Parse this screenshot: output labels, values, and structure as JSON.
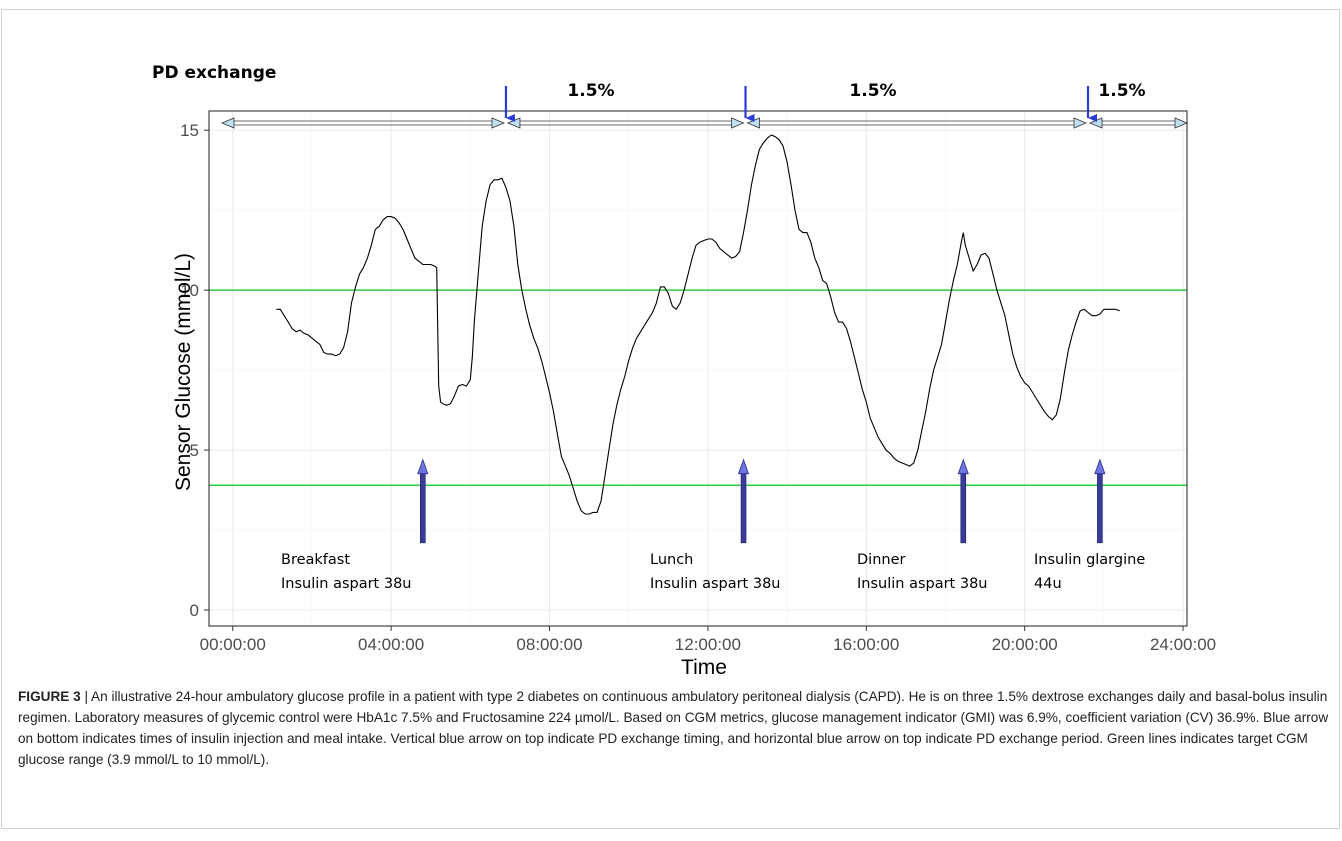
{
  "figure": {
    "top_header": "PD exchange",
    "caption_label": "FIGURE 3",
    "caption_sep": " | ",
    "caption_text": "An illustrative 24-hour ambulatory glucose profile in a patient with type 2 diabetes on continuous ambulatory peritoneal dialysis (CAPD). He is on three 1.5% dextrose exchanges daily and basal-bolus insulin regimen. Laboratory measures of glycemic control were HbA1c 7.5% and Fructosamine 224 µmol/L. Based on CGM metrics, glucose management indicator (GMI) was 6.9%, coefficient variation (CV) 36.9%. Blue arrow on bottom indicates times of insulin injection and meal intake. Vertical blue arrow on top indicate PD exchange timing, and horizontal blue arrow on top indicate PD exchange period. Green lines indicates target CGM glucose range (3.9 mmol/L to 10 mmol/L)."
  },
  "chart_data": {
    "type": "line",
    "xlabel": "Time",
    "ylabel": "Sensor Glucose (mmol/L)",
    "x_unit": "hours",
    "xlim": [
      -0.6,
      24.1
    ],
    "ylim": [
      -0.5,
      15.6
    ],
    "x_ticks": [
      {
        "value": 0,
        "label": "00:00:00"
      },
      {
        "value": 4,
        "label": "04:00:00"
      },
      {
        "value": 8,
        "label": "08:00:00"
      },
      {
        "value": 12,
        "label": "12:00:00"
      },
      {
        "value": 16,
        "label": "16:00:00"
      },
      {
        "value": 20,
        "label": "20:00:00"
      },
      {
        "value": 24,
        "label": "24:00:00"
      }
    ],
    "y_ticks": [
      0,
      5,
      10,
      15
    ],
    "grid": true,
    "reference_lines": [
      {
        "y": 10,
        "color": "#2ecc40"
      },
      {
        "y": 3.9,
        "color": "#2ecc40"
      }
    ],
    "series": [
      {
        "color": "#000000",
        "points": [
          [
            1.1,
            9.4
          ],
          [
            1.2,
            9.4
          ],
          [
            1.3,
            9.2
          ],
          [
            1.4,
            9.0
          ],
          [
            1.5,
            8.8
          ],
          [
            1.6,
            8.7
          ],
          [
            1.7,
            8.75
          ],
          [
            1.8,
            8.65
          ],
          [
            1.9,
            8.6
          ],
          [
            2.0,
            8.5
          ],
          [
            2.1,
            8.4
          ],
          [
            2.2,
            8.3
          ],
          [
            2.3,
            8.05
          ],
          [
            2.4,
            8.0
          ],
          [
            2.5,
            8.0
          ],
          [
            2.6,
            7.95
          ],
          [
            2.7,
            8.0
          ],
          [
            2.8,
            8.2
          ],
          [
            2.9,
            8.7
          ],
          [
            3.0,
            9.6
          ],
          [
            3.1,
            10.1
          ],
          [
            3.2,
            10.5
          ],
          [
            3.3,
            10.7
          ],
          [
            3.4,
            11.0
          ],
          [
            3.5,
            11.4
          ],
          [
            3.6,
            11.9
          ],
          [
            3.7,
            12.0
          ],
          [
            3.8,
            12.2
          ],
          [
            3.9,
            12.3
          ],
          [
            4.0,
            12.3
          ],
          [
            4.1,
            12.25
          ],
          [
            4.2,
            12.1
          ],
          [
            4.3,
            11.9
          ],
          [
            4.4,
            11.6
          ],
          [
            4.5,
            11.3
          ],
          [
            4.6,
            11.0
          ],
          [
            4.7,
            10.9
          ],
          [
            4.8,
            10.8
          ],
          [
            4.9,
            10.8
          ],
          [
            5.0,
            10.8
          ],
          [
            5.1,
            10.75
          ],
          [
            5.15,
            10.7
          ],
          [
            5.2,
            7.0
          ],
          [
            5.25,
            6.5
          ],
          [
            5.3,
            6.45
          ],
          [
            5.4,
            6.4
          ],
          [
            5.5,
            6.45
          ],
          [
            5.6,
            6.7
          ],
          [
            5.7,
            7.0
          ],
          [
            5.8,
            7.05
          ],
          [
            5.9,
            7.0
          ],
          [
            6.0,
            7.2
          ],
          [
            6.05,
            7.9
          ],
          [
            6.1,
            9.0
          ],
          [
            6.2,
            10.5
          ],
          [
            6.3,
            12.0
          ],
          [
            6.4,
            12.8
          ],
          [
            6.5,
            13.3
          ],
          [
            6.6,
            13.45
          ],
          [
            6.7,
            13.45
          ],
          [
            6.8,
            13.5
          ],
          [
            6.9,
            13.2
          ],
          [
            7.0,
            12.8
          ],
          [
            7.1,
            12.0
          ],
          [
            7.2,
            10.8
          ],
          [
            7.3,
            10.0
          ],
          [
            7.4,
            9.4
          ],
          [
            7.5,
            8.9
          ],
          [
            7.6,
            8.5
          ],
          [
            7.7,
            8.2
          ],
          [
            7.8,
            7.8
          ],
          [
            7.9,
            7.3
          ],
          [
            8.0,
            6.8
          ],
          [
            8.1,
            6.2
          ],
          [
            8.2,
            5.5
          ],
          [
            8.3,
            4.8
          ],
          [
            8.4,
            4.5
          ],
          [
            8.5,
            4.2
          ],
          [
            8.6,
            3.8
          ],
          [
            8.7,
            3.4
          ],
          [
            8.8,
            3.1
          ],
          [
            8.9,
            3.0
          ],
          [
            9.0,
            3.0
          ],
          [
            9.1,
            3.05
          ],
          [
            9.2,
            3.05
          ],
          [
            9.3,
            3.4
          ],
          [
            9.4,
            4.2
          ],
          [
            9.5,
            5.0
          ],
          [
            9.6,
            5.8
          ],
          [
            9.7,
            6.4
          ],
          [
            9.8,
            6.9
          ],
          [
            9.9,
            7.3
          ],
          [
            10.0,
            7.8
          ],
          [
            10.1,
            8.2
          ],
          [
            10.2,
            8.5
          ],
          [
            10.3,
            8.7
          ],
          [
            10.4,
            8.9
          ],
          [
            10.5,
            9.1
          ],
          [
            10.6,
            9.3
          ],
          [
            10.7,
            9.6
          ],
          [
            10.8,
            10.1
          ],
          [
            10.9,
            10.1
          ],
          [
            11.0,
            9.9
          ],
          [
            11.1,
            9.5
          ],
          [
            11.2,
            9.4
          ],
          [
            11.3,
            9.6
          ],
          [
            11.4,
            10.0
          ],
          [
            11.5,
            10.5
          ],
          [
            11.6,
            11.0
          ],
          [
            11.7,
            11.4
          ],
          [
            11.8,
            11.5
          ],
          [
            11.9,
            11.55
          ],
          [
            12.0,
            11.6
          ],
          [
            12.1,
            11.6
          ],
          [
            12.2,
            11.5
          ],
          [
            12.3,
            11.3
          ],
          [
            12.4,
            11.2
          ],
          [
            12.5,
            11.1
          ],
          [
            12.6,
            11.0
          ],
          [
            12.7,
            11.05
          ],
          [
            12.8,
            11.2
          ],
          [
            12.9,
            11.8
          ],
          [
            13.0,
            12.5
          ],
          [
            13.1,
            13.3
          ],
          [
            13.2,
            13.9
          ],
          [
            13.3,
            14.4
          ],
          [
            13.4,
            14.6
          ],
          [
            13.5,
            14.75
          ],
          [
            13.6,
            14.85
          ],
          [
            13.7,
            14.8
          ],
          [
            13.8,
            14.7
          ],
          [
            13.9,
            14.5
          ],
          [
            14.0,
            14.0
          ],
          [
            14.1,
            13.3
          ],
          [
            14.2,
            12.5
          ],
          [
            14.3,
            11.9
          ],
          [
            14.4,
            11.8
          ],
          [
            14.5,
            11.8
          ],
          [
            14.6,
            11.5
          ],
          [
            14.7,
            11.0
          ],
          [
            14.8,
            10.7
          ],
          [
            14.9,
            10.3
          ],
          [
            15.0,
            10.2
          ],
          [
            15.1,
            9.8
          ],
          [
            15.2,
            9.3
          ],
          [
            15.3,
            9.0
          ],
          [
            15.4,
            9.0
          ],
          [
            15.5,
            8.8
          ],
          [
            15.6,
            8.4
          ],
          [
            15.7,
            7.9
          ],
          [
            15.8,
            7.4
          ],
          [
            15.9,
            6.9
          ],
          [
            16.0,
            6.5
          ],
          [
            16.1,
            6.0
          ],
          [
            16.2,
            5.7
          ],
          [
            16.3,
            5.4
          ],
          [
            16.4,
            5.2
          ],
          [
            16.5,
            5.0
          ],
          [
            16.6,
            4.9
          ],
          [
            16.7,
            4.75
          ],
          [
            16.8,
            4.65
          ],
          [
            16.9,
            4.6
          ],
          [
            17.0,
            4.55
          ],
          [
            17.1,
            4.5
          ],
          [
            17.2,
            4.6
          ],
          [
            17.3,
            5.0
          ],
          [
            17.4,
            5.6
          ],
          [
            17.5,
            6.2
          ],
          [
            17.6,
            6.9
          ],
          [
            17.7,
            7.5
          ],
          [
            17.8,
            7.9
          ],
          [
            17.9,
            8.3
          ],
          [
            18.0,
            9.0
          ],
          [
            18.1,
            9.7
          ],
          [
            18.2,
            10.3
          ],
          [
            18.3,
            10.8
          ],
          [
            18.4,
            11.5
          ],
          [
            18.45,
            11.8
          ],
          [
            18.5,
            11.4
          ],
          [
            18.6,
            11.0
          ],
          [
            18.7,
            10.6
          ],
          [
            18.8,
            10.8
          ],
          [
            18.9,
            11.1
          ],
          [
            19.0,
            11.15
          ],
          [
            19.1,
            11.0
          ],
          [
            19.2,
            10.5
          ],
          [
            19.3,
            10.0
          ],
          [
            19.4,
            9.6
          ],
          [
            19.5,
            9.2
          ],
          [
            19.6,
            8.6
          ],
          [
            19.7,
            8.0
          ],
          [
            19.8,
            7.6
          ],
          [
            19.9,
            7.3
          ],
          [
            20.0,
            7.1
          ],
          [
            20.1,
            7.0
          ],
          [
            20.2,
            6.8
          ],
          [
            20.3,
            6.6
          ],
          [
            20.4,
            6.4
          ],
          [
            20.5,
            6.2
          ],
          [
            20.6,
            6.05
          ],
          [
            20.7,
            5.95
          ],
          [
            20.8,
            6.1
          ],
          [
            20.9,
            6.6
          ],
          [
            21.0,
            7.4
          ],
          [
            21.1,
            8.1
          ],
          [
            21.2,
            8.6
          ],
          [
            21.3,
            9.0
          ],
          [
            21.4,
            9.35
          ],
          [
            21.5,
            9.4
          ],
          [
            21.6,
            9.3
          ],
          [
            21.7,
            9.2
          ],
          [
            21.8,
            9.2
          ],
          [
            21.9,
            9.25
          ],
          [
            22.0,
            9.4
          ],
          [
            22.1,
            9.4
          ],
          [
            22.2,
            9.4
          ],
          [
            22.3,
            9.4
          ],
          [
            22.4,
            9.35
          ]
        ]
      }
    ],
    "meal_insulin_markers": [
      {
        "x": 4.8,
        "line1": "Breakfast",
        "line2": "Insulin aspart 38u"
      },
      {
        "x": 12.9,
        "line1": "Lunch",
        "line2": "Insulin aspart 38u"
      },
      {
        "x": 18.45,
        "line1": "Dinner",
        "line2": "Insulin aspart 38u"
      },
      {
        "x": 21.9,
        "line1": "Insulin glargine",
        "line2": "44u"
      }
    ],
    "pd_exchange_times": [
      6.9,
      12.95,
      21.6
    ],
    "pd_exchange_labels": [
      "1.5%",
      "1.5%",
      "1.5%"
    ]
  }
}
